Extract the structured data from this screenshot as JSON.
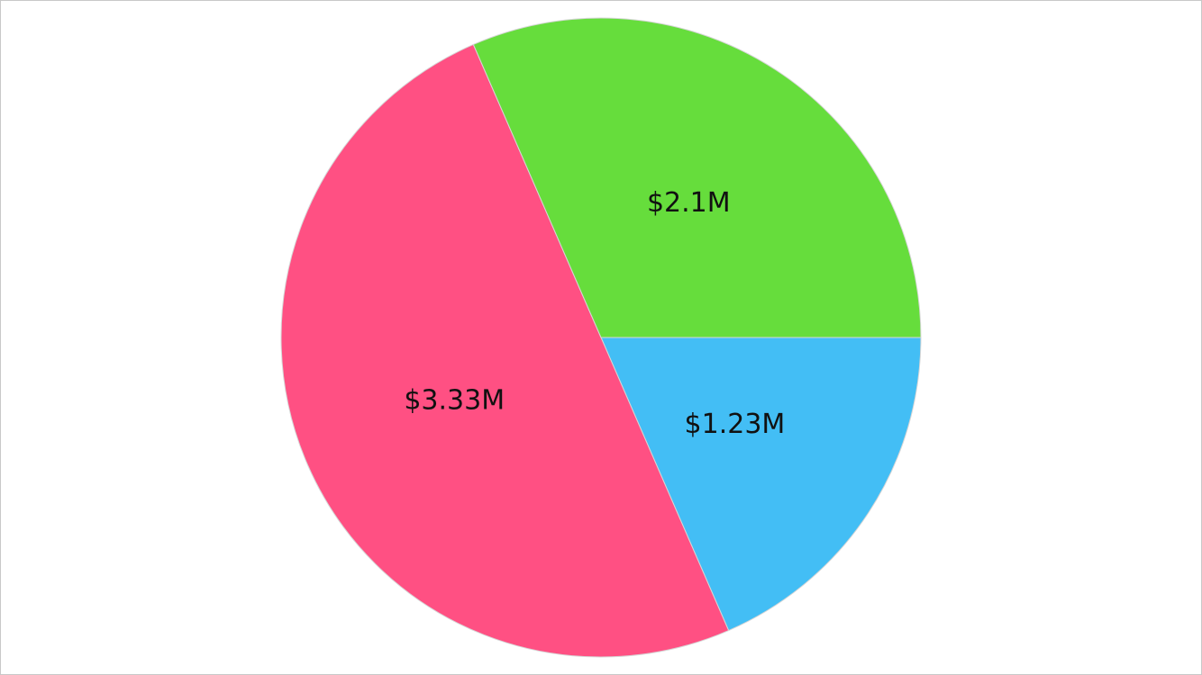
{
  "chart_data": {
    "type": "pie",
    "start_angle_deg": 0,
    "direction": "clockwise",
    "legend": "none",
    "slices": [
      {
        "label": "$1.23M",
        "value": 1.23,
        "color": "#43BEF5"
      },
      {
        "label": "$3.33M",
        "value": 3.33,
        "color": "#FF5083"
      },
      {
        "label": "$2.1M",
        "value": 2.1,
        "color": "#66DD3C"
      }
    ]
  }
}
